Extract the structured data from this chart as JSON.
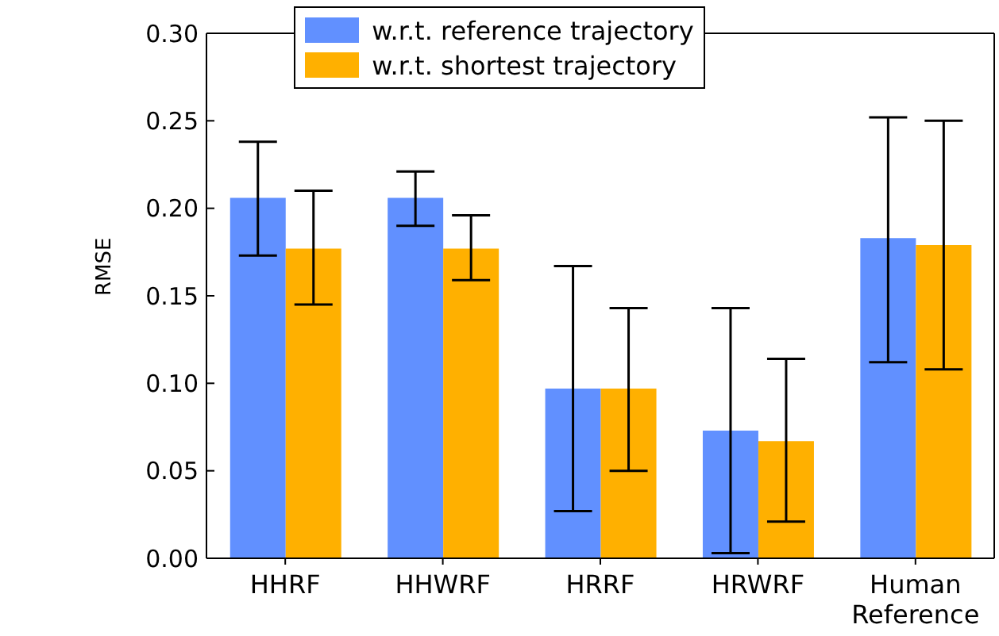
{
  "chart_data": {
    "type": "bar",
    "ylabel": "RMSE",
    "categories": [
      "HHRF",
      "HHWRF",
      "HRRF",
      "HRWRF",
      "Human Reference"
    ],
    "series": [
      {
        "name": "w.r.t. reference trajectory",
        "color": "#6190ff",
        "values": [
          0.206,
          0.206,
          0.097,
          0.073,
          0.183
        ],
        "errors": [
          [
            0.173,
            0.238
          ],
          [
            0.19,
            0.221
          ],
          [
            0.027,
            0.167
          ],
          [
            0.003,
            0.143
          ],
          [
            0.112,
            0.252
          ]
        ]
      },
      {
        "name": "w.r.t. shortest trajectory",
        "color": "#ffb000",
        "values": [
          0.177,
          0.177,
          0.097,
          0.067,
          0.179
        ],
        "errors": [
          [
            0.145,
            0.21
          ],
          [
            0.159,
            0.196
          ],
          [
            0.05,
            0.143
          ],
          [
            0.021,
            0.114
          ],
          [
            0.108,
            0.25
          ]
        ]
      }
    ],
    "ylim": [
      0,
      0.3
    ],
    "yticks": [
      {
        "value": 0,
        "label": "0.00"
      },
      {
        "value": 0.05,
        "label": "0.05"
      },
      {
        "value": 0.1,
        "label": "0.10"
      },
      {
        "value": 0.15,
        "label": "0.15"
      },
      {
        "value": 0.2,
        "label": "0.20"
      },
      {
        "value": 0.25,
        "label": "0.25"
      },
      {
        "value": 0.3,
        "label": "0.30"
      }
    ],
    "grid": false,
    "legend": "top"
  }
}
